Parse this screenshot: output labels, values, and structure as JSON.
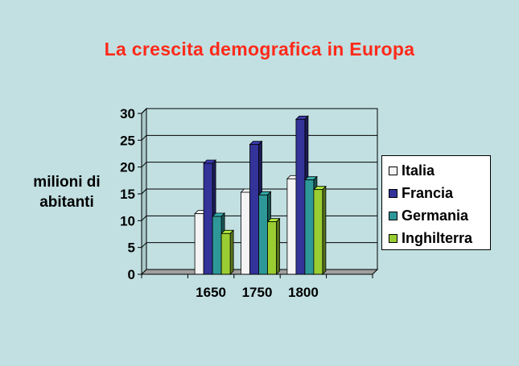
{
  "chart_data": {
    "type": "bar",
    "title": "La crescita demografica in Europa",
    "ylabel_lines": [
      "milioni di",
      "abitanti"
    ],
    "xlabel": "",
    "categories": [
      "",
      "1650",
      "1750",
      "1800",
      ""
    ],
    "ylim": [
      0,
      30
    ],
    "yticks": [
      0,
      5,
      10,
      15,
      20,
      25,
      30
    ],
    "grid": true,
    "legend_position": "right",
    "series": [
      {
        "name": "Italia",
        "color": "#f4f4f4",
        "values": [
          0,
          11.3,
          15.3,
          17.8,
          0
        ]
      },
      {
        "name": "Francia",
        "color": "#33339a",
        "values": [
          0,
          20.7,
          24.2,
          28.9,
          0
        ]
      },
      {
        "name": "Germania",
        "color": "#2e9898",
        "values": [
          0,
          10.8,
          14.8,
          17.6,
          0
        ]
      },
      {
        "name": "Inghilterra",
        "color": "#9acd32",
        "values": [
          0,
          7.6,
          9.8,
          15.8,
          0
        ]
      }
    ]
  }
}
